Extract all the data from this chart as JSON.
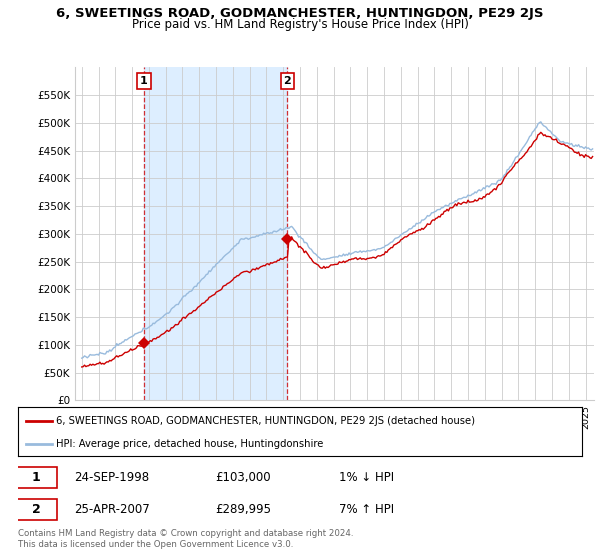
{
  "title": "6, SWEETINGS ROAD, GODMANCHESTER, HUNTINGDON, PE29 2JS",
  "subtitle": "Price paid vs. HM Land Registry's House Price Index (HPI)",
  "red_label": "6, SWEETINGS ROAD, GODMANCHESTER, HUNTINGDON, PE29 2JS (detached house)",
  "blue_label": "HPI: Average price, detached house, Huntingdonshire",
  "transaction1_date": "24-SEP-1998",
  "transaction1_price": "£103,000",
  "transaction1_hpi": "1% ↓ HPI",
  "transaction2_date": "25-APR-2007",
  "transaction2_price": "£289,995",
  "transaction2_hpi": "7% ↑ HPI",
  "footnote": "Contains HM Land Registry data © Crown copyright and database right 2024.\nThis data is licensed under the Open Government Licence v3.0.",
  "ylim": [
    0,
    600000
  ],
  "yticks": [
    0,
    50000,
    100000,
    150000,
    200000,
    250000,
    300000,
    350000,
    400000,
    450000,
    500000,
    550000
  ],
  "background_color": "#ffffff",
  "plot_bg_color": "#ffffff",
  "grid_color": "#cccccc",
  "red_color": "#cc0000",
  "blue_color": "#99bbdd",
  "shade_color": "#ddeeff",
  "t1_year": 1998.708,
  "t2_year": 2007.25,
  "t1_price": 103000,
  "t2_price": 289995
}
